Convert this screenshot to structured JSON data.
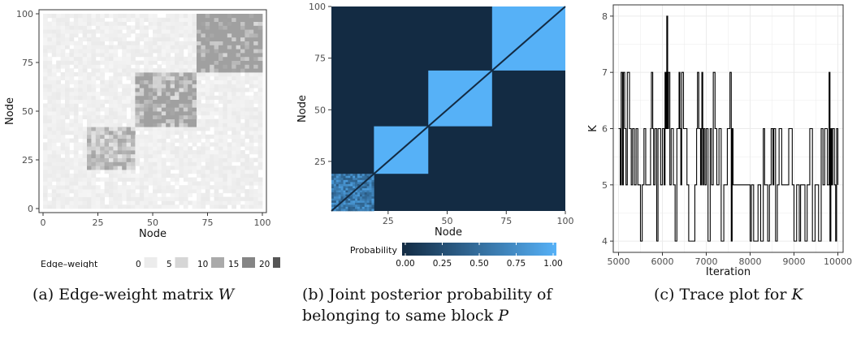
{
  "colors": {
    "weight_scale": [
      "#ececec",
      "#d6d6d6",
      "#aaaaaa",
      "#858585",
      "#555555"
    ],
    "prob_low": "#132b43",
    "prob_high": "#56b1f7",
    "grid": "#ebebeb",
    "panel_border": "#333333"
  },
  "panels": {
    "a": {
      "caption_prefix": "(a) Edge-weight matrix ",
      "caption_var": "W",
      "xlabel": "Node",
      "ylabel": "Node",
      "legend_title": "Edge–weight",
      "legend_labels": [
        "0",
        "5",
        "10",
        "15",
        "20"
      ]
    },
    "b": {
      "caption_line1": "(b) Joint posterior probability of",
      "caption_line2_prefix": "belonging to same block ",
      "caption_var": "P",
      "xlabel": "Node",
      "ylabel": "Node",
      "legend_title": "Probability",
      "legend_labels": [
        "0.00",
        "0.25",
        "0.50",
        "0.75",
        "1.00"
      ]
    },
    "c": {
      "caption_prefix": "(c) Trace plot for ",
      "caption_var": "K",
      "xlabel": "Iteration",
      "ylabel": "K"
    }
  },
  "chart_data": [
    {
      "type": "heatmap",
      "title": "",
      "xlabel": "Node",
      "ylabel": "Node",
      "xlim": [
        0,
        100
      ],
      "ylim": [
        0,
        100
      ],
      "x_ticks": [
        "0",
        "25",
        "50",
        "75",
        "100"
      ],
      "y_ticks": [
        "0",
        "25",
        "50",
        "75",
        "100"
      ],
      "legend": {
        "title": "Edge–weight",
        "labels": [
          "0",
          "5",
          "10",
          "15",
          "20"
        ],
        "placement": "bottom"
      },
      "blocks": [
        {
          "nodes": [
            20,
            43
          ],
          "mean_weight": 6
        },
        {
          "nodes": [
            43,
            70
          ],
          "mean_weight": 9
        },
        {
          "nodes": [
            70,
            100
          ],
          "mean_weight": 12
        }
      ],
      "background_weight": 1,
      "grid": false
    },
    {
      "type": "heatmap",
      "title": "",
      "xlabel": "Node",
      "ylabel": "Node",
      "xlim": [
        1,
        100
      ],
      "ylim": [
        1,
        100
      ],
      "x_ticks": [
        "25",
        "50",
        "75",
        "100"
      ],
      "y_ticks": [
        "25",
        "50",
        "75",
        "100"
      ],
      "legend": {
        "title": "Probability",
        "labels": [
          "0.00",
          "0.25",
          "0.50",
          "0.75",
          "1.00"
        ],
        "placement": "bottom"
      },
      "blocks": [
        {
          "nodes": [
            1,
            19
          ],
          "probability": 0.6,
          "note_mixed": true
        },
        {
          "nodes": [
            19,
            42
          ],
          "probability": 1.0
        },
        {
          "nodes": [
            42,
            69
          ],
          "probability": 1.0
        },
        {
          "nodes": [
            69,
            100
          ],
          "probability": 1.0
        }
      ],
      "diagonal_probability": 0.0,
      "grid": false
    },
    {
      "type": "line",
      "title": "",
      "xlabel": "Iteration",
      "ylabel": "K",
      "xlim": [
        5000,
        10000
      ],
      "ylim": [
        4,
        8
      ],
      "x_ticks": [
        "5000",
        "6000",
        "7000",
        "8000",
        "9000",
        "10000"
      ],
      "y_ticks": [
        "4",
        "5",
        "6",
        "7",
        "8"
      ],
      "step": true,
      "grid": true,
      "x": [
        5000,
        5040,
        5060,
        5090,
        5110,
        5140,
        5170,
        5200,
        5250,
        5290,
        5320,
        5360,
        5400,
        5440,
        5500,
        5540,
        5580,
        5620,
        5700,
        5730,
        5750,
        5780,
        5800,
        5830,
        5870,
        5900,
        5960,
        6000,
        6040,
        6060,
        6080,
        6100,
        6120,
        6140,
        6170,
        6200,
        6250,
        6290,
        6330,
        6380,
        6400,
        6420,
        6440,
        6480,
        6560,
        6600,
        6680,
        6740,
        6780,
        6800,
        6830,
        6870,
        6890,
        6900,
        6920,
        6940,
        6970,
        7000,
        7040,
        7090,
        7120,
        7160,
        7200,
        7240,
        7290,
        7340,
        7400,
        7480,
        7540,
        7570,
        7590,
        7610,
        7700,
        7800,
        7900,
        8000,
        8030,
        8080,
        8180,
        8240,
        8300,
        8330,
        8400,
        8440,
        8480,
        8520,
        8540,
        8580,
        8620,
        8660,
        8720,
        8800,
        8880,
        8960,
        9000,
        9060,
        9120,
        9150,
        9250,
        9300,
        9360,
        9420,
        9480,
        9560,
        9620,
        9660,
        9700,
        9760,
        9800,
        9820,
        9840,
        9860,
        9880,
        9920,
        9950,
        9970,
        10000
      ],
      "y": [
        6,
        5,
        7,
        5,
        7,
        6,
        5,
        7,
        6,
        5,
        6,
        5,
        6,
        5,
        4,
        5,
        6,
        5,
        5,
        6,
        7,
        6,
        5,
        6,
        4,
        6,
        5,
        6,
        5,
        7,
        6,
        8,
        6,
        7,
        5,
        6,
        5,
        4,
        6,
        7,
        6,
        5,
        7,
        6,
        5,
        4,
        4,
        5,
        6,
        7,
        6,
        5,
        6,
        7,
        5,
        6,
        5,
        6,
        4,
        6,
        5,
        7,
        6,
        5,
        6,
        4,
        5,
        6,
        7,
        4,
        6,
        5,
        5,
        5,
        5,
        4,
        5,
        4,
        5,
        4,
        6,
        5,
        4,
        5,
        6,
        5,
        6,
        4,
        5,
        6,
        5,
        5,
        6,
        5,
        4,
        5,
        4,
        5,
        4,
        5,
        6,
        4,
        5,
        4,
        6,
        5,
        6,
        5,
        7,
        4,
        6,
        5,
        6,
        5,
        4,
        6,
        5
      ]
    }
  ]
}
